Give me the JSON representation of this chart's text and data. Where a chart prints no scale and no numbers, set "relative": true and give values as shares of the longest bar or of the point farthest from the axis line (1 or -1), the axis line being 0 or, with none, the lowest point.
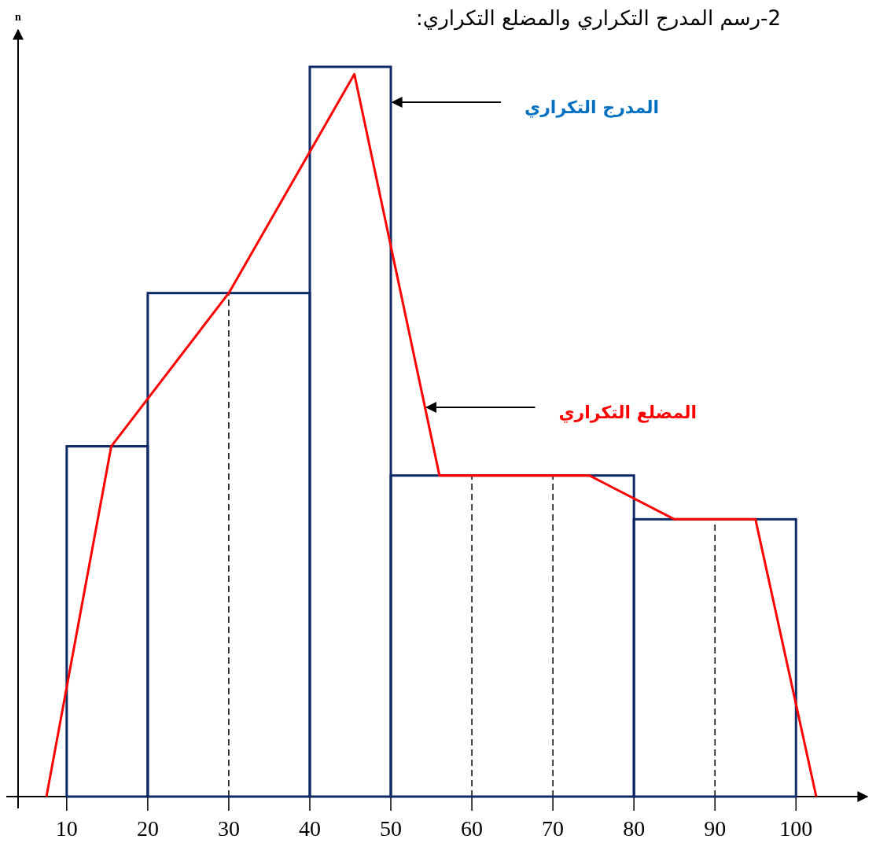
{
  "chart_data": {
    "type": "histogram",
    "title": "2-رسم المدرج التكراري والمضلع التكراري:",
    "ylabel": "n",
    "relative": true,
    "bins": [
      10,
      20,
      40,
      50,
      80,
      100
    ],
    "xlim": [
      4,
      109
    ],
    "xticks": [
      10,
      20,
      30,
      40,
      50,
      60,
      70,
      80,
      90,
      100
    ],
    "series": [
      {
        "color": "#0f2a66",
        "values": [
          0.48,
          0.69,
          1,
          0.44,
          0.38
        ]
      },
      {
        "type": "line",
        "color": "#ff0000",
        "x": [
          7.5,
          15.5,
          30,
          45.5,
          56,
          74.5,
          85,
          95,
          102.5
        ],
        "values": [
          0,
          0.48,
          0.69,
          0.99,
          0.44,
          0.44,
          0.38,
          0.38,
          0
        ]
      }
    ],
    "ref_lines": [
      {
        "axis": "x",
        "value": 30,
        "color": "#000000",
        "line_style": "dashed"
      },
      {
        "axis": "x",
        "value": 60,
        "color": "#000000",
        "line_style": "dashed"
      },
      {
        "axis": "x",
        "value": 70,
        "color": "#000000",
        "line_style": "dashed"
      },
      {
        "axis": "x",
        "value": 90,
        "color": "#000000",
        "line_style": "dashed"
      }
    ],
    "annotations": [
      "المدرج التكراري",
      "المضلع التكراري"
    ]
  }
}
